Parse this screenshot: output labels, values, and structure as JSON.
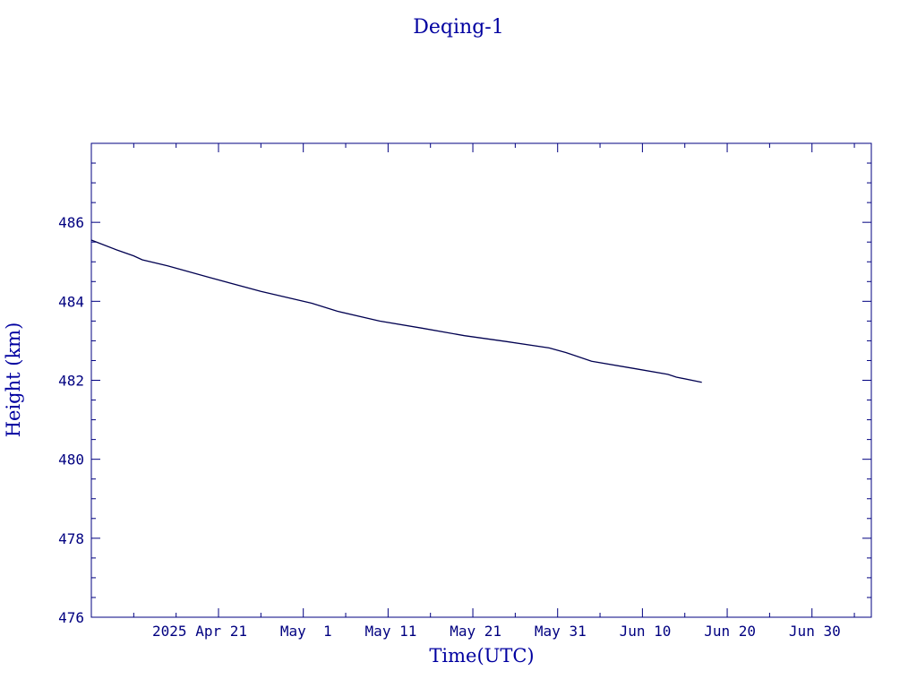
{
  "chart_data": {
    "type": "line",
    "title": "Deqing-1",
    "xlabel": "Time(UTC)",
    "ylabel": "Height (km)",
    "xlim": [
      "2025-04-06",
      "2025-07-07"
    ],
    "ylim": [
      476,
      488
    ],
    "x_ticks": [
      "2025-04-21",
      "2025-05-01",
      "2025-05-11",
      "2025-05-21",
      "2025-05-31",
      "2025-06-10",
      "2025-06-20",
      "2025-06-30"
    ],
    "x_tick_labels": [
      "2025 Apr 21",
      "May  1",
      "May 11",
      "May 21",
      "May 31",
      "Jun 10",
      "Jun 20",
      "Jun 30"
    ],
    "y_ticks": [
      476,
      478,
      480,
      482,
      484,
      486
    ],
    "y_tick_labels": [
      "476",
      "478",
      "480",
      "482",
      "484",
      "486"
    ],
    "grid": false,
    "color": "#000080",
    "line_color": "#000050",
    "series": [
      {
        "x": [
          "2025-04-06",
          "2025-04-09",
          "2025-04-11",
          "2025-04-12",
          "2025-04-15",
          "2025-04-20",
          "2025-04-26",
          "2025-05-02",
          "2025-05-05",
          "2025-05-10",
          "2025-05-15",
          "2025-05-20",
          "2025-05-25",
          "2025-05-30",
          "2025-06-01",
          "2025-06-04",
          "2025-06-09",
          "2025-06-13",
          "2025-06-14",
          "2025-06-17"
        ],
        "y": [
          485.55,
          485.3,
          485.15,
          485.05,
          484.9,
          484.6,
          484.25,
          483.95,
          483.75,
          483.5,
          483.32,
          483.13,
          482.98,
          482.82,
          482.7,
          482.48,
          482.3,
          482.15,
          482.08,
          481.95
        ]
      }
    ]
  }
}
